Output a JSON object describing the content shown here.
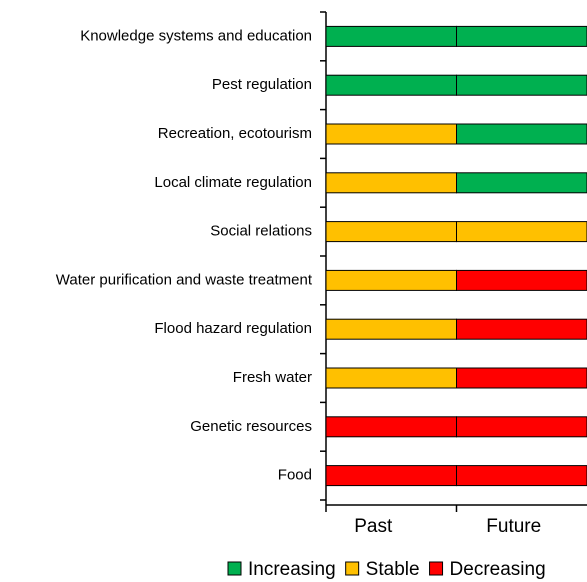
{
  "chart_data": {
    "type": "status-grid",
    "categories": [
      "Knowledge systems and education",
      "Pest regulation",
      "Recreation, ecotourism",
      "Local climate regulation",
      "Social relations",
      "Water purification and waste treatment",
      "Flood hazard regulation",
      "Fresh water",
      "Genetic resources",
      "Food"
    ],
    "legend": [
      {
        "name": "Increasing",
        "color": "#00b050"
      },
      {
        "name": "Stable",
        "color": "#ffc000"
      },
      {
        "name": "Decreasing",
        "color": "#ff0000"
      }
    ],
    "series": [
      {
        "name": "Past",
        "values": [
          "Increasing",
          "Increasing",
          "Stable",
          "Stable",
          "Stable",
          "Stable",
          "Stable",
          "Stable",
          "Decreasing",
          "Decreasing"
        ]
      },
      {
        "name": "Future",
        "values": [
          "Increasing",
          "Increasing",
          "Increasing",
          "Increasing",
          "Stable",
          "Decreasing",
          "Decreasing",
          "Decreasing",
          "Decreasing",
          "Decreasing"
        ]
      }
    ]
  }
}
